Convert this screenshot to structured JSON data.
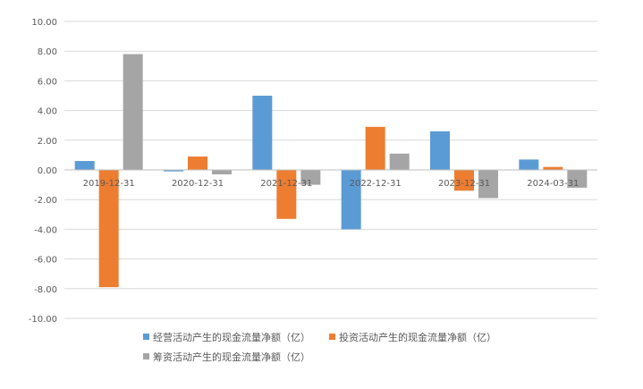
{
  "chart_data": {
    "type": "bar",
    "categories": [
      "2019-12-31",
      "2020-12-31",
      "2021-12-31",
      "2022-12-31",
      "2023-12-31",
      "2024-03-31"
    ],
    "series": [
      {
        "name": "经营活动产生的现金流量净额（亿）",
        "color": "#5b9bd5",
        "values": [
          0.6,
          -0.1,
          5.0,
          -4.0,
          2.6,
          0.7
        ]
      },
      {
        "name": "投资活动产生的现金流量净额（亿）",
        "color": "#ed7d31",
        "values": [
          -7.9,
          0.9,
          -3.3,
          2.9,
          -1.4,
          0.2
        ]
      },
      {
        "name": "筹资活动产生的现金流量净额（亿）",
        "color": "#a5a5a5",
        "values": [
          7.8,
          -0.3,
          -1.0,
          1.1,
          -1.9,
          -1.2
        ]
      }
    ],
    "ylim": [
      -10,
      10
    ],
    "yticks": [
      "10.00",
      "8.00",
      "6.00",
      "4.00",
      "2.00",
      "0.00",
      "-2.00",
      "-4.00",
      "-6.00",
      "-8.00",
      "-10.00"
    ],
    "grid": true,
    "legend_position": "bottom"
  }
}
